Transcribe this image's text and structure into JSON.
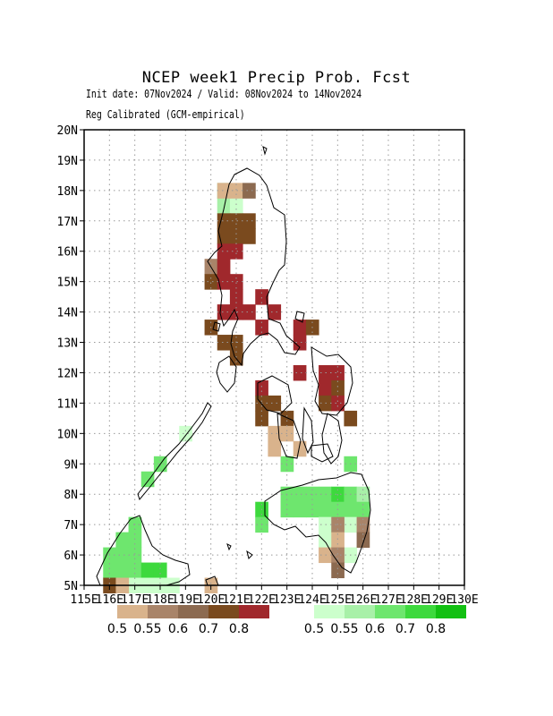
{
  "title": "NCEP week1 Precip Prob. Fcst",
  "subtitle_dates": "Init date: 07Nov2024 / Valid: 08Nov2024 to 14Nov2024",
  "subtitle_method": "Reg Calibrated (GCM-empirical)",
  "lat_labels": [
    "20N",
    "19N",
    "18N",
    "17N",
    "16N",
    "15N",
    "14N",
    "13N",
    "12N",
    "11N",
    "10N",
    "9N",
    "8N",
    "7N",
    "6N",
    "5N"
  ],
  "lon_labels": [
    "115E",
    "116E",
    "117E",
    "118E",
    "119E",
    "120E",
    "121E",
    "122E",
    "123E",
    "124E",
    "125E",
    "126E",
    "127E",
    "128E",
    "129E",
    "130E"
  ],
  "dry_legend": {
    "colors": [
      "#d9b38c",
      "#a98469",
      "#8c6a50",
      "#7a4a1e",
      "#a0282c"
    ],
    "labels": [
      "0.5",
      "0.55",
      "0.6",
      "0.7",
      "0.8"
    ]
  },
  "wet_legend": {
    "colors": [
      "#ccffcc",
      "#a8f0a8",
      "#6ee66e",
      "#3dd93d",
      "#12c012"
    ],
    "labels": [
      "0.5",
      "0.55",
      "0.6",
      "0.7",
      "0.8"
    ]
  },
  "colors": {
    "coast": "#000000",
    "grid": "#999999"
  },
  "chart_data": {
    "type": "heatmap",
    "x_range_lon": [
      115,
      130
    ],
    "y_range_lat": [
      5,
      20
    ],
    "cell_size_deg": 0.5,
    "dry_cells": [
      [
        120.5,
        18.0,
        0
      ],
      [
        121.0,
        18.0,
        0
      ],
      [
        121.5,
        18.0,
        2
      ],
      [
        120.5,
        17.0,
        3
      ],
      [
        121.0,
        17.0,
        3
      ],
      [
        121.5,
        17.0,
        3
      ],
      [
        120.5,
        16.5,
        3
      ],
      [
        121.0,
        16.5,
        3
      ],
      [
        121.5,
        16.5,
        3
      ],
      [
        120.5,
        16.0,
        4
      ],
      [
        121.0,
        16.0,
        4
      ],
      [
        120.0,
        15.5,
        1
      ],
      [
        120.5,
        15.5,
        4
      ],
      [
        120.0,
        15.0,
        3
      ],
      [
        120.5,
        15.0,
        4
      ],
      [
        121.0,
        15.0,
        4
      ],
      [
        121.0,
        14.5,
        4
      ],
      [
        122.0,
        14.5,
        4
      ],
      [
        120.5,
        14.0,
        4
      ],
      [
        121.0,
        14.0,
        4
      ],
      [
        121.5,
        14.0,
        4
      ],
      [
        122.5,
        14.0,
        4
      ],
      [
        120.0,
        13.5,
        3
      ],
      [
        122.0,
        13.5,
        4
      ],
      [
        123.5,
        13.5,
        4
      ],
      [
        124.0,
        13.5,
        3
      ],
      [
        120.5,
        13.0,
        3
      ],
      [
        121.0,
        13.0,
        3
      ],
      [
        123.5,
        13.0,
        4
      ],
      [
        121.0,
        12.5,
        3
      ],
      [
        123.5,
        12.0,
        4
      ],
      [
        124.5,
        12.0,
        4
      ],
      [
        125.0,
        12.0,
        4
      ],
      [
        124.5,
        11.5,
        4
      ],
      [
        125.0,
        11.5,
        3
      ],
      [
        122.0,
        11.5,
        4
      ],
      [
        122.0,
        11.0,
        3
      ],
      [
        122.5,
        11.0,
        3
      ],
      [
        124.5,
        11.0,
        3
      ],
      [
        125.0,
        11.0,
        4
      ],
      [
        122.0,
        10.5,
        3
      ],
      [
        123.0,
        10.5,
        3
      ],
      [
        125.5,
        10.5,
        3
      ],
      [
        122.5,
        10.0,
        0
      ],
      [
        123.0,
        10.0,
        0
      ],
      [
        122.5,
        9.5,
        0
      ],
      [
        123.5,
        9.5,
        0
      ],
      [
        125.0,
        7.0,
        1
      ],
      [
        125.0,
        6.5,
        0
      ],
      [
        126.0,
        7.0,
        1
      ],
      [
        126.0,
        6.5,
        2
      ],
      [
        124.5,
        6.0,
        0
      ],
      [
        125.0,
        6.0,
        1
      ],
      [
        125.0,
        5.5,
        2
      ],
      [
        116.0,
        5.0,
        3
      ],
      [
        116.5,
        5.0,
        0
      ],
      [
        120.0,
        5.0,
        0
      ]
    ],
    "wet_cells": [
      [
        120.5,
        18.0,
        1
      ],
      [
        120.5,
        17.5,
        1
      ],
      [
        121.0,
        17.5,
        0
      ],
      [
        124.5,
        11.5,
        1
      ],
      [
        119.0,
        10.0,
        0
      ],
      [
        118.0,
        9.0,
        2
      ],
      [
        125.5,
        9.0,
        2
      ],
      [
        123.0,
        9.0,
        2
      ],
      [
        117.5,
        8.5,
        2
      ],
      [
        123.0,
        8.0,
        2
      ],
      [
        123.5,
        8.0,
        2
      ],
      [
        124.0,
        8.0,
        2
      ],
      [
        124.5,
        8.0,
        2
      ],
      [
        125.0,
        8.0,
        3
      ],
      [
        125.5,
        8.0,
        2
      ],
      [
        126.0,
        8.0,
        1
      ],
      [
        122.0,
        7.5,
        3
      ],
      [
        123.0,
        7.5,
        2
      ],
      [
        123.5,
        7.5,
        2
      ],
      [
        124.0,
        7.5,
        2
      ],
      [
        124.5,
        7.5,
        2
      ],
      [
        125.0,
        7.5,
        2
      ],
      [
        125.5,
        7.5,
        2
      ],
      [
        126.0,
        7.5,
        2
      ],
      [
        122.0,
        7.0,
        2
      ],
      [
        117.0,
        7.0,
        2
      ],
      [
        124.5,
        7.0,
        0
      ],
      [
        125.5,
        7.0,
        0
      ],
      [
        116.5,
        6.5,
        2
      ],
      [
        117.0,
        6.5,
        2
      ],
      [
        124.5,
        6.5,
        0
      ],
      [
        116.0,
        6.0,
        2
      ],
      [
        116.5,
        6.0,
        2
      ],
      [
        117.0,
        6.0,
        2
      ],
      [
        125.5,
        6.0,
        0
      ],
      [
        116.0,
        5.5,
        2
      ],
      [
        116.5,
        5.5,
        2
      ],
      [
        117.0,
        5.5,
        2
      ],
      [
        117.5,
        5.5,
        3
      ],
      [
        118.0,
        5.5,
        3
      ],
      [
        117.0,
        5.0,
        0
      ],
      [
        117.5,
        5.0,
        0
      ],
      [
        118.0,
        5.0,
        0
      ],
      [
        118.5,
        5.0,
        0
      ]
    ]
  }
}
